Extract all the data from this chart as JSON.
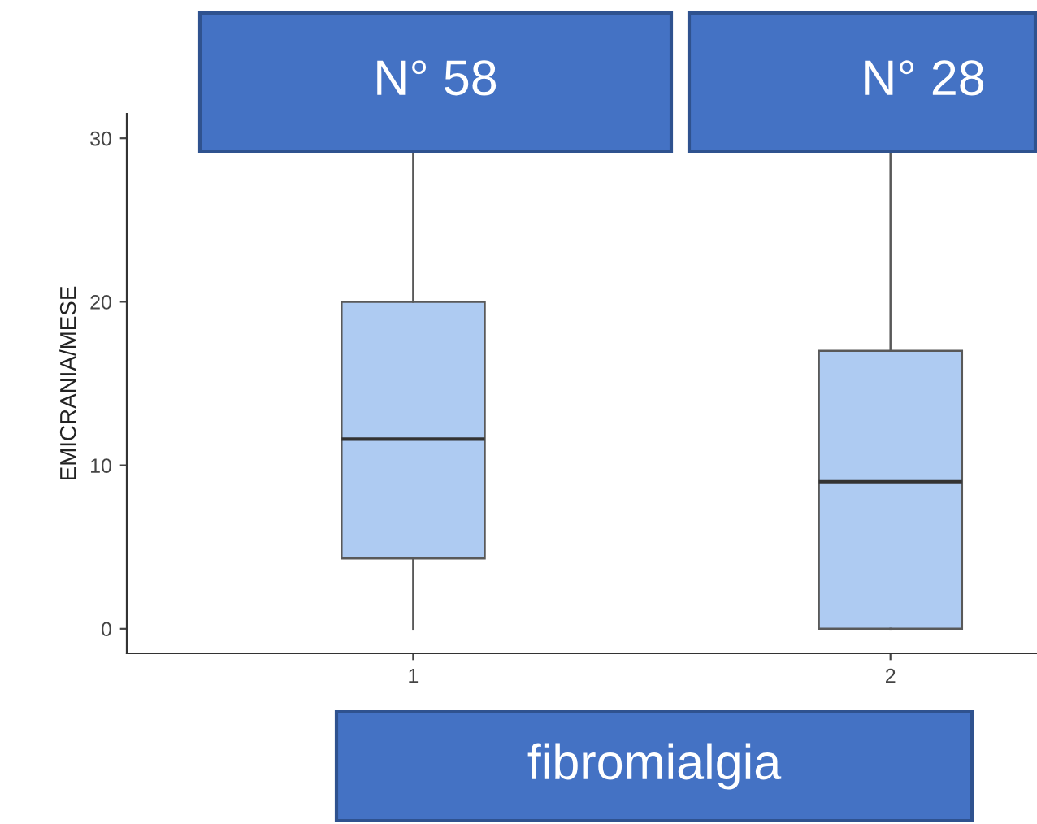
{
  "chart_data": {
    "type": "box",
    "categories": [
      "1",
      "2"
    ],
    "boxes": [
      {
        "low": 0,
        "q1": 4.3,
        "median": 11.6,
        "q3": 20,
        "high": 30
      },
      {
        "low": 0,
        "q1": 0,
        "median": 9,
        "q3": 17,
        "high": 30
      }
    ],
    "color": "#aecbf2",
    "ylabel": "EMICRANIA/MESE",
    "xlabel": "fibromialgia",
    "annotations": [
      "N° 58",
      "N° 28"
    ],
    "ylim": [
      -1.5,
      31.5
    ],
    "yticks": [
      0,
      10,
      20,
      30
    ],
    "grid": false
  }
}
